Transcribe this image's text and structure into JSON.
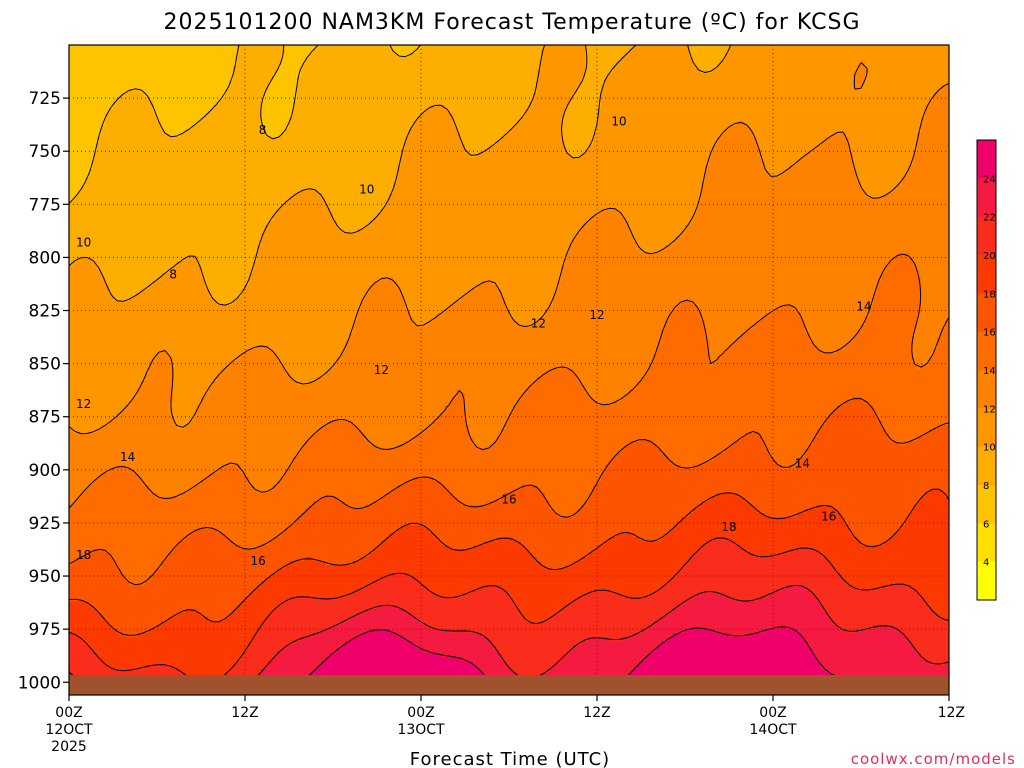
{
  "chart_data": {
    "type": "heatmap",
    "title": "2025101200 NAM3KM Forecast Temperature (ºC) for KCSG",
    "xlabel": "Forecast Time (UTC)",
    "ylabel": "",
    "x_ticks": [
      {
        "hour": 0,
        "line1": "00Z",
        "line2": "12OCT",
        "line3": "2025"
      },
      {
        "hour": 12,
        "line1": "12Z",
        "line2": "",
        "line3": ""
      },
      {
        "hour": 24,
        "line1": "00Z",
        "line2": "13OCT",
        "line3": ""
      },
      {
        "hour": 36,
        "line1": "12Z",
        "line2": "",
        "line3": ""
      },
      {
        "hour": 48,
        "line1": "00Z",
        "line2": "14OCT",
        "line3": ""
      },
      {
        "hour": 60,
        "line1": "12Z",
        "line2": "",
        "line3": ""
      }
    ],
    "xlim_hours": [
      0,
      60
    ],
    "y_ticks": [
      "725",
      "750",
      "775",
      "800",
      "825",
      "850",
      "875",
      "900",
      "925",
      "950",
      "975",
      "1000"
    ],
    "y_tick_values": [
      725,
      750,
      775,
      800,
      825,
      850,
      875,
      900,
      925,
      950,
      975,
      1000
    ],
    "ylim_hpa": [
      700,
      1006
    ],
    "y_inverted": true,
    "grid": "dotted",
    "contour_levels": [
      4,
      6,
      8,
      10,
      12,
      14,
      16,
      18,
      20,
      22,
      24
    ],
    "colorbar": {
      "labels": [
        "24",
        "22",
        "20",
        "18",
        "16",
        "14",
        "12",
        "10",
        "8",
        "6",
        "4"
      ],
      "colors": [
        "#f0006a",
        "#f51a40",
        "#fa2c1c",
        "#fc3a00",
        "#fd5400",
        "#fe6c00",
        "#fe8200",
        "#fe9600",
        "#feae00",
        "#fec400",
        "#ffe000",
        "#ffff00"
      ]
    },
    "contour_labels": [
      {
        "text": "8",
        "hour": 13.2,
        "p": 740
      },
      {
        "text": "8",
        "hour": 7.1,
        "p": 808
      },
      {
        "text": "10",
        "hour": 1.0,
        "p": 793
      },
      {
        "text": "10",
        "hour": 20.3,
        "p": 768
      },
      {
        "text": "10",
        "hour": 37.5,
        "p": 736
      },
      {
        "text": "12",
        "hour": 1.0,
        "p": 869
      },
      {
        "text": "12",
        "hour": 21.3,
        "p": 853
      },
      {
        "text": "12",
        "hour": 32.0,
        "p": 831
      },
      {
        "text": "12",
        "hour": 36.0,
        "p": 827
      },
      {
        "text": "14",
        "hour": 4.0,
        "p": 894
      },
      {
        "text": "14",
        "hour": 50.0,
        "p": 897
      },
      {
        "text": "14",
        "hour": 54.2,
        "p": 823
      },
      {
        "text": "16",
        "hour": 12.9,
        "p": 943
      },
      {
        "text": "16",
        "hour": 30.0,
        "p": 914
      },
      {
        "text": "16",
        "hour": 51.8,
        "p": 922
      },
      {
        "text": "18",
        "hour": 1.0,
        "p": 940
      },
      {
        "text": "18",
        "hour": 45.0,
        "p": 927
      }
    ],
    "temperature_profile_summary": {
      "series": [
        {
          "name": "",
          "p_hpa": [
            725,
            800,
            875,
            950,
            1000
          ],
          "hour": 0,
          "temp_c": [
            6,
            10,
            12,
            18,
            21
          ]
        },
        {
          "name": "",
          "p_hpa": [
            725,
            800,
            875,
            950,
            1000
          ],
          "hour": 24,
          "temp_c": [
            9,
            11,
            14,
            20,
            26
          ]
        },
        {
          "name": "",
          "p_hpa": [
            725,
            800,
            875,
            950,
            1000
          ],
          "hour": 48,
          "temp_c": [
            11,
            13,
            14,
            19,
            25
          ]
        }
      ]
    }
  },
  "credit": "coolwx.com/models",
  "ground_color": "#a0522d"
}
